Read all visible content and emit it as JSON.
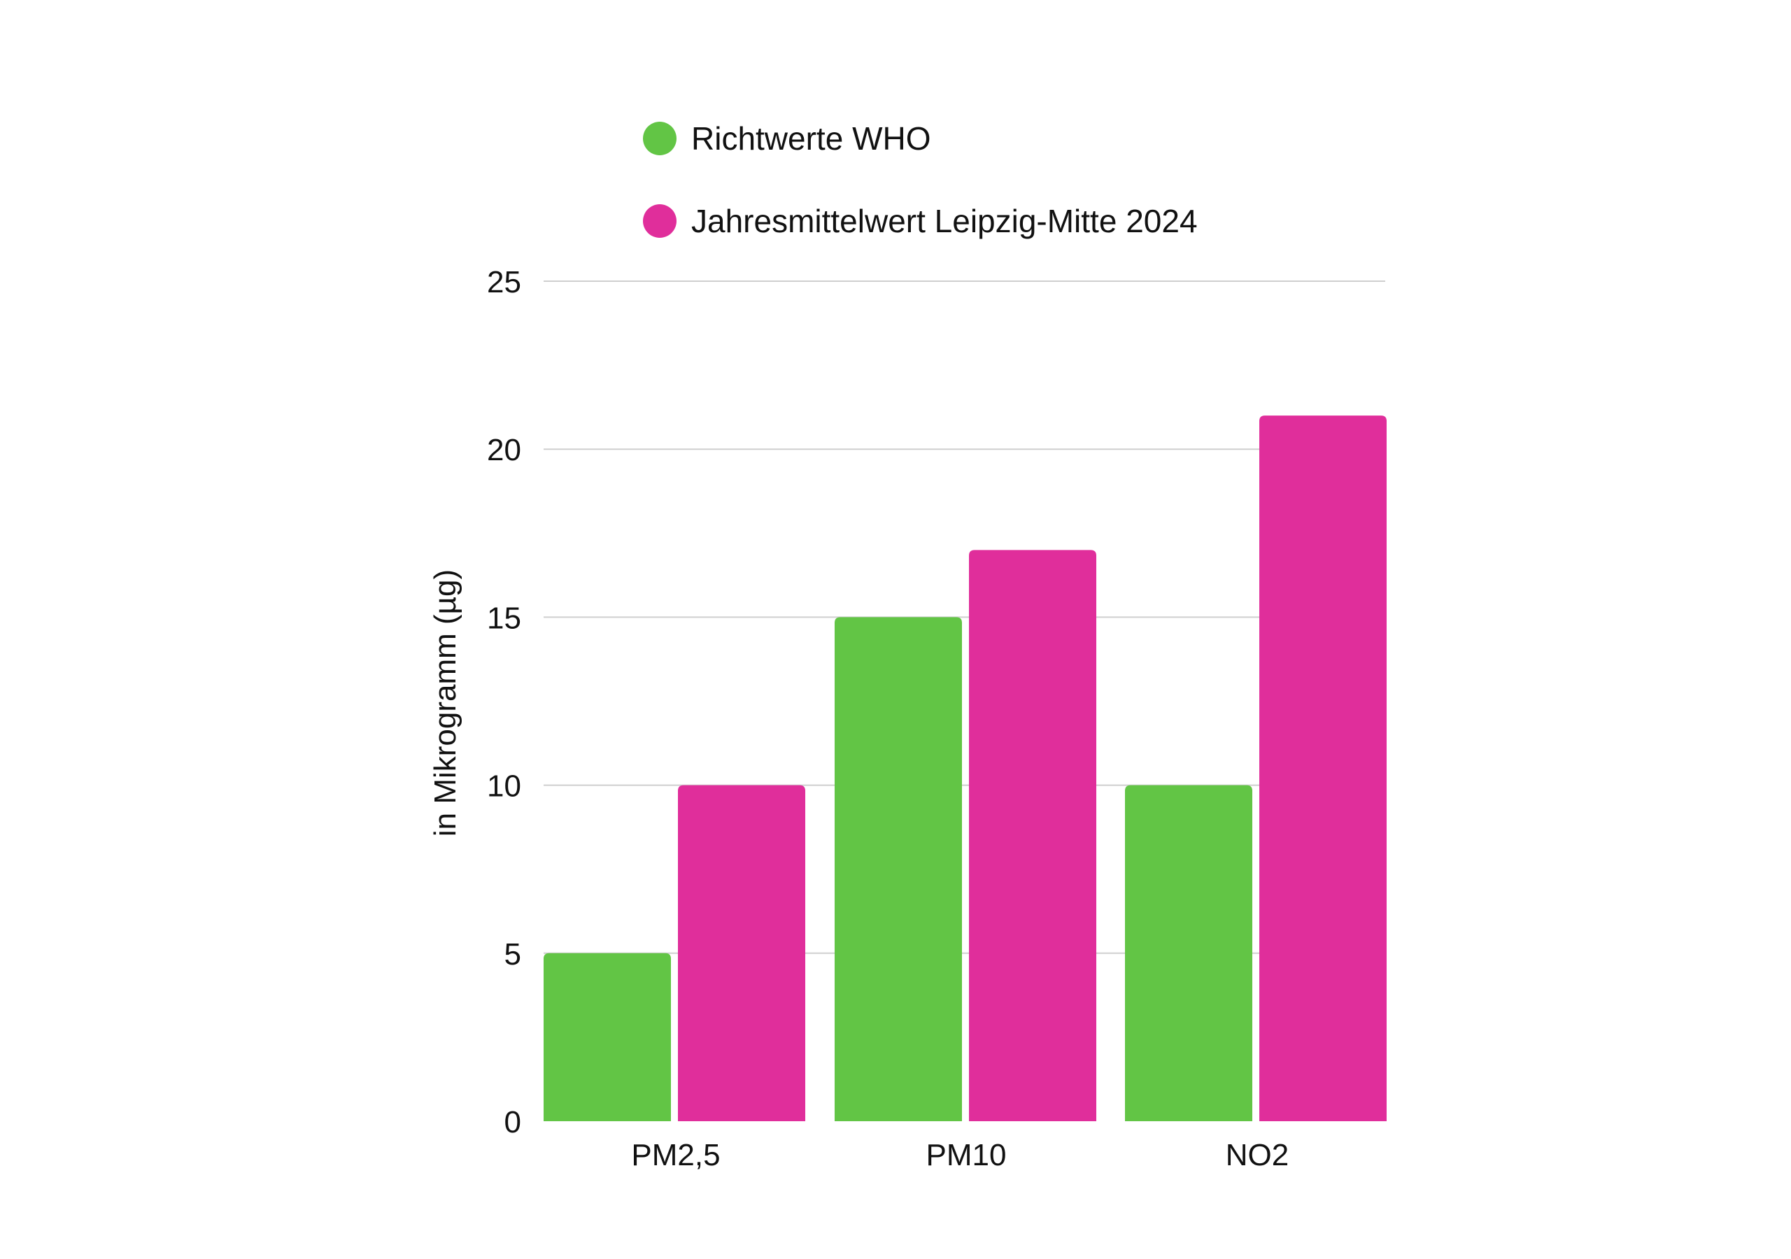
{
  "colors": {
    "who": "#62c545",
    "leipzig": "#e02e9b",
    "grid": "#cfcfcf",
    "text": "#111111"
  },
  "chart_data": {
    "type": "bar",
    "categories": [
      "PM2,5",
      "PM10",
      "NO2"
    ],
    "series": [
      {
        "name": "Richtwerte WHO",
        "values": [
          5,
          15,
          10
        ],
        "color": "#62c545"
      },
      {
        "name": "Jahresmittelwert Leipzig-Mitte 2024",
        "values": [
          10,
          17,
          21
        ],
        "color": "#e02e9b"
      }
    ],
    "ylabel": "in Mikrogramm (µg)",
    "xlabel": "",
    "ylim": [
      0,
      25
    ],
    "yticks": [
      "0",
      "5",
      "10",
      "15",
      "20",
      "25"
    ],
    "ytick_values": [
      0,
      5,
      10,
      15,
      20,
      25
    ],
    "grid": true,
    "legend_position": "top"
  }
}
